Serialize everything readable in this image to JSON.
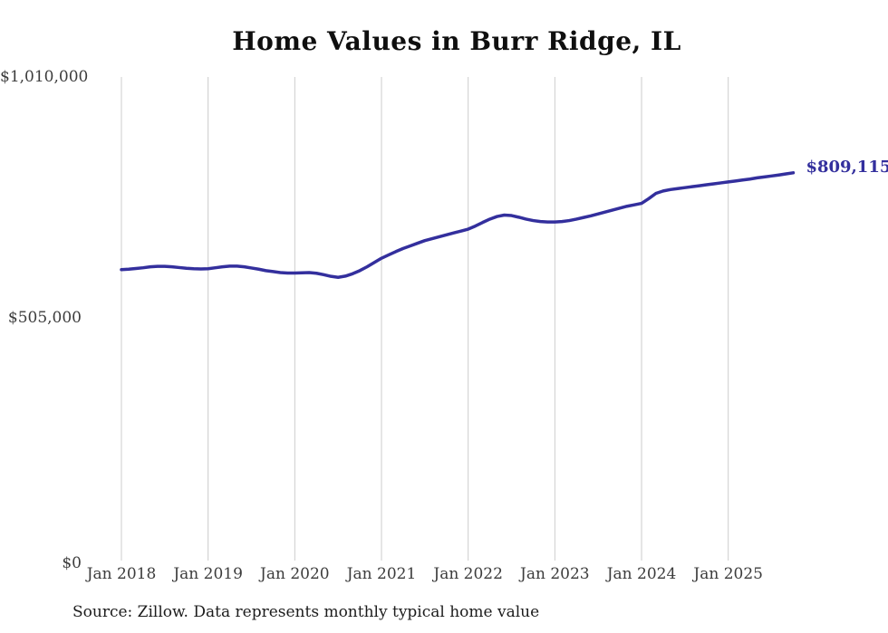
{
  "page_title": "Home Values in Burr Ridge, IL",
  "source_note": "Source: Zillow. Data represents monthly typical home value",
  "colors": {
    "line": "#332f9d",
    "grid": "#cccccc",
    "axis_text": "#3c3c3c",
    "title_text": "#0f0f0f",
    "source_text": "#1c1c1c",
    "background": "#ffffff"
  },
  "chart_data": {
    "type": "line",
    "title": "Home Values in Burr Ridge, IL",
    "xlabel": "",
    "ylabel": "",
    "unit": "USD",
    "ylim": [
      0,
      1010000
    ],
    "grid": "vertical-only",
    "legend": "none",
    "end_label": "$809,115",
    "end_value": 809115,
    "x_ticks": [
      "Jan 2018",
      "Jan 2019",
      "Jan 2020",
      "Jan 2021",
      "Jan 2022",
      "Jan 2023",
      "Jan 2024",
      "Jan 2025"
    ],
    "y_ticks": [
      {
        "value": 0,
        "label": "$0"
      },
      {
        "value": 505000,
        "label": "$505,000"
      },
      {
        "value": 1010000,
        "label": "$1,010,000"
      }
    ],
    "series": [
      {
        "name": "Monthly typical home value",
        "start_month": "2018-01",
        "end_month": "2025-10",
        "interval": "monthly",
        "values": [
          606000,
          607000,
          608500,
          610000,
          612000,
          613000,
          613000,
          612000,
          610500,
          609000,
          608000,
          607500,
          608000,
          610000,
          612000,
          613500,
          613500,
          612000,
          609500,
          607000,
          604000,
          602000,
          600000,
          599000,
          599000,
          599500,
          600000,
          598500,
          595500,
          592000,
          590000,
          592500,
          597500,
          604000,
          612000,
          621000,
          630000,
          637000,
          644000,
          650500,
          656000,
          661500,
          667000,
          671000,
          675000,
          679000,
          683000,
          687000,
          691000,
          697500,
          705000,
          712000,
          717500,
          720500,
          719500,
          716000,
          712000,
          709000,
          707000,
          706000,
          706000,
          707000,
          709000,
          712000,
          715500,
          719000,
          723000,
          727000,
          731000,
          735000,
          739000,
          742000,
          745000,
          755000,
          766000,
          771000,
          774000,
          776000,
          778000,
          780000,
          782000,
          784000,
          786000,
          788000,
          790000,
          792000,
          794000,
          796000,
          798500,
          800500,
          802500,
          804500,
          806800,
          809115
        ]
      }
    ]
  }
}
